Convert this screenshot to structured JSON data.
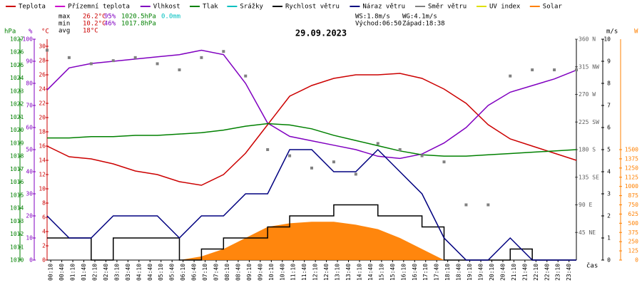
{
  "chart_data": {
    "type": "line",
    "title": "29.09.2023",
    "xlabel": "čas",
    "stats": {
      "max": [
        "max",
        "26.2°C",
        "95%",
        "1020.5hPa",
        "0.0mm"
      ],
      "min": [
        "min",
        "10.2°C",
        "46%",
        "1017.8hPa"
      ],
      "avg": [
        "avg",
        "18°C"
      ],
      "wind": [
        "WS:1.8m/s",
        "WG:4.1m/s"
      ],
      "sun": [
        "Východ:06:50",
        "Západ:18:38"
      ]
    },
    "legend_only": [
      {
        "name": "Přízemní teplota",
        "color": "#cc00cc"
      },
      {
        "name": "Srážky",
        "color": "#00c0c0"
      },
      {
        "name": "UV index",
        "color": "#e0e000"
      }
    ],
    "x": [
      0,
      60,
      120,
      180,
      240,
      300,
      360,
      420,
      480,
      540,
      600,
      660,
      720,
      780,
      840,
      900,
      960,
      1020,
      1080,
      1140,
      1200,
      1260,
      1320,
      1380,
      1440
    ],
    "xlim": [
      0,
      1440
    ],
    "xticks": [
      {
        "value": 10,
        "label": "00:10"
      },
      {
        "value": 40,
        "label": "00:40"
      },
      {
        "value": 70,
        "label": "01:10"
      },
      {
        "value": 100,
        "label": "01:40"
      },
      {
        "value": 130,
        "label": "02:10"
      },
      {
        "value": 160,
        "label": "02:40"
      },
      {
        "value": 190,
        "label": "03:10"
      },
      {
        "value": 220,
        "label": "03:40"
      },
      {
        "value": 250,
        "label": "04:10"
      },
      {
        "value": 280,
        "label": "04:40"
      },
      {
        "value": 310,
        "label": "05:10"
      },
      {
        "value": 340,
        "label": "05:40"
      },
      {
        "value": 370,
        "label": "06:10"
      },
      {
        "value": 400,
        "label": "06:40"
      },
      {
        "value": 430,
        "label": "07:10"
      },
      {
        "value": 460,
        "label": "07:40"
      },
      {
        "value": 490,
        "label": "08:10"
      },
      {
        "value": 520,
        "label": "08:40"
      },
      {
        "value": 550,
        "label": "09:10"
      },
      {
        "value": 580,
        "label": "09:40"
      },
      {
        "value": 610,
        "label": "10:10"
      },
      {
        "value": 640,
        "label": "10:40"
      },
      {
        "value": 670,
        "label": "11:10"
      },
      {
        "value": 700,
        "label": "11:40"
      },
      {
        "value": 730,
        "label": "12:10"
      },
      {
        "value": 760,
        "label": "12:40"
      },
      {
        "value": 790,
        "label": "13:10"
      },
      {
        "value": 820,
        "label": "13:40"
      },
      {
        "value": 850,
        "label": "14:10"
      },
      {
        "value": 880,
        "label": "14:40"
      },
      {
        "value": 910,
        "label": "15:10"
      },
      {
        "value": 940,
        "label": "15:40"
      },
      {
        "value": 970,
        "label": "16:10"
      },
      {
        "value": 1000,
        "label": "16:40"
      },
      {
        "value": 1030,
        "label": "17:10"
      },
      {
        "value": 1060,
        "label": "17:40"
      },
      {
        "value": 1090,
        "label": "18:10"
      },
      {
        "value": 1120,
        "label": "18:40"
      },
      {
        "value": 1150,
        "label": "19:10"
      },
      {
        "value": 1180,
        "label": "19:40"
      },
      {
        "value": 1210,
        "label": "20:10"
      },
      {
        "value": 1240,
        "label": "20:40"
      },
      {
        "value": 1270,
        "label": "21:10"
      },
      {
        "value": 1300,
        "label": "21:40"
      },
      {
        "value": 1330,
        "label": "22:10"
      },
      {
        "value": 1360,
        "label": "22:40"
      },
      {
        "value": 1390,
        "label": "23:10"
      },
      {
        "value": 1420,
        "label": "23:40"
      }
    ],
    "axes": {
      "hpa": {
        "label": "hPa",
        "color": "#008000",
        "lim": [
          1010,
          1027
        ],
        "ticks": [
          1010,
          1011,
          1012,
          1013,
          1014,
          1015,
          1016,
          1017,
          1018,
          1019,
          1020,
          1021,
          1022,
          1023,
          1024,
          1025,
          1026,
          1027
        ]
      },
      "pct": {
        "label": "%",
        "color": "#8000c0",
        "lim": [
          0,
          100
        ],
        "ticks": [
          0,
          10,
          20,
          30,
          40,
          50,
          60,
          70,
          80,
          90,
          100
        ]
      },
      "temp": {
        "label": "°C",
        "color": "#cc0000",
        "lim": [
          0,
          31
        ],
        "ticks": [
          0,
          2,
          4,
          6,
          8,
          10,
          12,
          14,
          16,
          18,
          20,
          22,
          24,
          26,
          28,
          30
        ]
      },
      "deg": {
        "color": "#606060",
        "lim": [
          0,
          360
        ],
        "ticks": [
          {
            "value": 45,
            "label": "45 NE"
          },
          {
            "value": 90,
            "label": "90 E"
          },
          {
            "value": 135,
            "label": "135 SE"
          },
          {
            "value": 180,
            "label": "180 S"
          },
          {
            "value": 225,
            "label": "225 SW"
          },
          {
            "value": 270,
            "label": "270 W"
          },
          {
            "value": 315,
            "label": "315 NW"
          },
          {
            "value": 360,
            "label": "360 N"
          }
        ]
      },
      "ms": {
        "label": "m/s",
        "color": "#000000",
        "lim": [
          0,
          10
        ],
        "ticks": [
          0,
          1,
          2,
          3,
          4,
          5,
          6,
          7,
          8,
          9,
          10
        ]
      },
      "solar": {
        "label": "W",
        "color": "#ff8000",
        "lim": [
          0,
          3000
        ],
        "ticks": [
          0,
          125,
          250,
          375,
          500,
          625,
          750,
          875,
          1000,
          1125,
          1250,
          1375,
          1500
        ]
      }
    },
    "series": [
      {
        "name": "Solar",
        "color": "#ff8000",
        "axis": "solar",
        "kind": "area",
        "values": [
          0,
          0,
          0,
          0,
          0,
          0,
          0,
          50,
          150,
          300,
          450,
          500,
          520,
          520,
          480,
          420,
          300,
          150,
          0,
          0,
          0,
          0,
          0,
          0,
          0
        ]
      },
      {
        "name": "Teplota",
        "color": "#cc0000",
        "axis": "temp",
        "kind": "line",
        "values": [
          16,
          14.5,
          14.2,
          13.5,
          12.5,
          12,
          11,
          10.5,
          12,
          15,
          19,
          23,
          24.5,
          25.5,
          26,
          26,
          26.2,
          25.5,
          24,
          22,
          19,
          17,
          16,
          15,
          14
        ]
      },
      {
        "name": "Vlhkost",
        "color": "#8000c0",
        "axis": "pct",
        "kind": "line",
        "values": [
          77,
          87,
          89,
          90,
          91,
          92,
          93,
          95,
          93,
          80,
          62,
          56,
          54,
          52,
          50,
          47,
          46,
          48,
          53,
          60,
          70,
          76,
          79,
          82,
          86
        ]
      },
      {
        "name": "Tlak",
        "color": "#008000",
        "axis": "hpa",
        "kind": "line",
        "values": [
          1019.4,
          1019.4,
          1019.5,
          1019.5,
          1019.6,
          1019.6,
          1019.7,
          1019.8,
          1020,
          1020.3,
          1020.5,
          1020.4,
          1020.1,
          1019.6,
          1019.2,
          1018.8,
          1018.4,
          1018.1,
          1018,
          1018,
          1018.1,
          1018.2,
          1018.3,
          1018.4,
          1018.5
        ]
      },
      {
        "name": "Rychlost větru",
        "color": "#000000",
        "axis": "ms",
        "kind": "step",
        "values": [
          1,
          1,
          0,
          1,
          1,
          1,
          0,
          0.5,
          1,
          1,
          1.5,
          2,
          2,
          2.5,
          2.5,
          2,
          2,
          1.5,
          0,
          0,
          0,
          0.5,
          0,
          0,
          0
        ]
      },
      {
        "name": "Náraz větru",
        "color": "#000080",
        "axis": "ms",
        "kind": "line",
        "values": [
          2,
          1,
          1,
          2,
          2,
          2,
          1,
          2,
          2,
          3,
          3,
          5,
          5,
          4,
          4,
          5,
          4,
          3,
          1,
          0,
          0,
          1,
          0,
          0,
          0
        ]
      },
      {
        "name": "Směr větru",
        "color": "#808080",
        "axis": "deg",
        "kind": "scatter",
        "values": [
          342,
          330,
          320,
          325,
          330,
          320,
          310,
          330,
          340,
          300,
          180,
          170,
          150,
          160,
          140,
          190,
          180,
          170,
          160,
          90,
          90,
          300,
          310,
          310,
          310
        ]
      }
    ]
  }
}
